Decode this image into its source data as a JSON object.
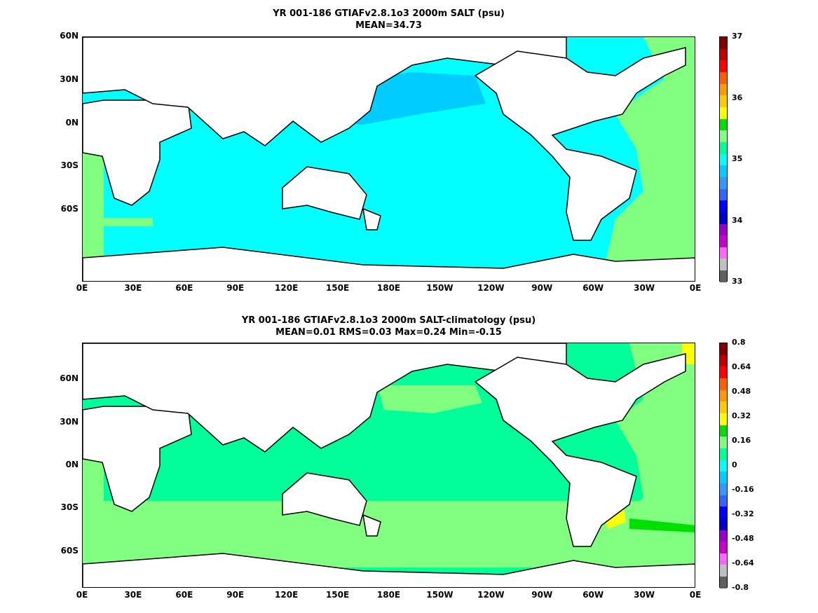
{
  "panel1": {
    "title_line1": "YR 001-186 GTIAFv2.8.1o3 2000m SALT (psu)",
    "title_line2": "MEAN=34.73",
    "colorbar": {
      "labels": [
        "37",
        "36",
        "35",
        "34",
        "33"
      ],
      "colors": [
        "#800000",
        "#c00000",
        "#ff0000",
        "#ff6000",
        "#ff9900",
        "#ffcc00",
        "#ffff00",
        "#00e000",
        "#80ff80",
        "#00ff99",
        "#00ffff",
        "#00ccff",
        "#3399ff",
        "#3366ff",
        "#0000ff",
        "#0000cc",
        "#9900cc",
        "#cc00cc",
        "#ff66ff",
        "#c0c0c0",
        "#606060"
      ]
    }
  },
  "panel2": {
    "title_line1": "YR 001-186 GTIAFv2.8.1o3 2000m SALT-climatology (psu)",
    "title_line2": "MEAN=0.01   RMS=0.03   Max=0.24   Min=-0.15",
    "colorbar": {
      "labels": [
        "0.8",
        "0.64",
        "0.48",
        "0.32",
        "0.16",
        "0",
        "-0.16",
        "-0.32",
        "-0.48",
        "-0.64",
        "-0.8"
      ],
      "colors": [
        "#800000",
        "#c00000",
        "#ff0000",
        "#ff6000",
        "#ff9900",
        "#ffcc00",
        "#ffff00",
        "#00e000",
        "#80ff80",
        "#00ff99",
        "#00ffff",
        "#00ccff",
        "#3399ff",
        "#3366ff",
        "#0000ff",
        "#0000cc",
        "#9900cc",
        "#cc00cc",
        "#ff66ff",
        "#c0c0c0",
        "#606060"
      ]
    }
  },
  "x_ticks": [
    "0E",
    "30E",
    "60E",
    "90E",
    "120E",
    "150E",
    "180E",
    "150W",
    "120W",
    "90W",
    "60W",
    "30W",
    "0E"
  ],
  "y_ticks": [
    "60N",
    "30N",
    "0N",
    "30S",
    "60S"
  ],
  "colors": {
    "ocean_main": "#00ffff",
    "ocean_pacific_north": "#00ccff",
    "ocean_atlantic": "#80ff80",
    "anom_main": "#00ff99",
    "anom_patch": "#80ff80",
    "anom_high": "#ffff00",
    "land": "#ffffff",
    "coast": "#000000"
  }
}
